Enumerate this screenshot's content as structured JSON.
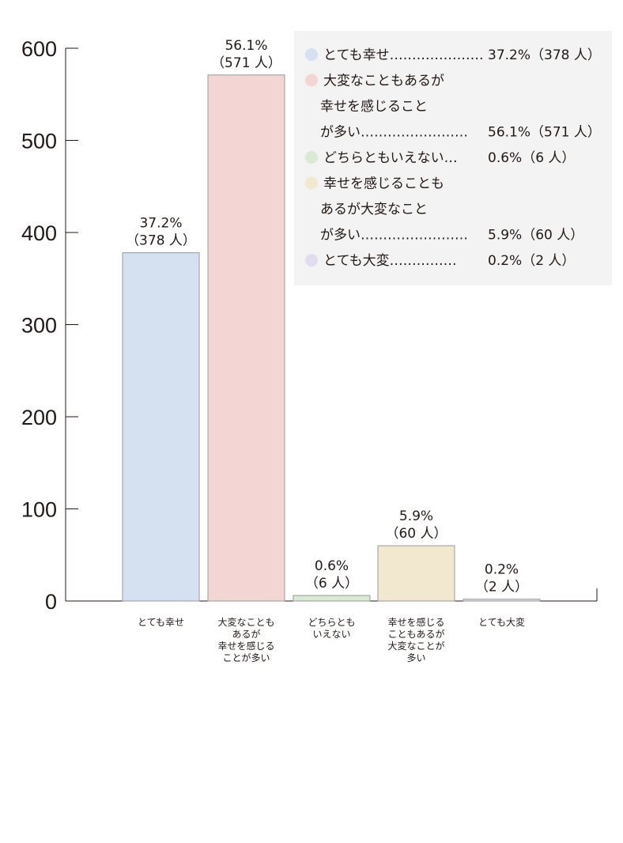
{
  "chart_data": {
    "type": "bar",
    "title": "",
    "xlabel": "",
    "ylabel": "",
    "ylim": [
      0,
      600
    ],
    "yticks": [
      0,
      100,
      200,
      300,
      400,
      500,
      600
    ],
    "grid": false,
    "legend": {
      "placement": "top-right",
      "items": [
        {
          "lines": [
            "とても幸せ…………………"
          ],
          "value": "37.2%（378 人）",
          "color": "#d5e1f0"
        },
        {
          "lines": [
            "大変なこともあるが",
            "幸せを感じること",
            "が多い……………………"
          ],
          "value": "56.1%（571 人）",
          "color": "#f3d6d4"
        },
        {
          "lines": [
            "どちらともいえない…"
          ],
          "value": "0.6%（6 人）",
          "color": "#d9ead3"
        },
        {
          "lines": [
            "幸せを感じることも",
            "あるが大変なこと",
            "が多い……………………"
          ],
          "value": "5.9%（60 人）",
          "color": "#f2e8cf"
        },
        {
          "lines": [
            "とても大変……………"
          ],
          "value": "0.2%（2 人）",
          "color": "#e3dbee"
        }
      ]
    },
    "categories": [
      {
        "lines": [
          "とても幸せ"
        ]
      },
      {
        "lines": [
          "大変なことも",
          "あるが",
          "幸せを感じる",
          "ことが多い"
        ]
      },
      {
        "lines": [
          "どちらとも",
          "いえない"
        ]
      },
      {
        "lines": [
          "幸せを感じる",
          "こともあるが",
          "大変なことが",
          "多い"
        ]
      },
      {
        "lines": [
          "とても大変"
        ]
      }
    ],
    "values": [
      378,
      571,
      6,
      60,
      2
    ],
    "data_labels": [
      [
        "37.2%",
        "（378 人）"
      ],
      [
        "56.1%",
        "（571 人）"
      ],
      [
        "0.6%",
        "（6 人）"
      ],
      [
        "5.9%",
        "（60 人）"
      ],
      [
        "0.2%",
        "（2 人）"
      ]
    ],
    "colors": [
      "#d5e1f0",
      "#f3d6d4",
      "#d9ead3",
      "#f2e8cf",
      "#e3dbee"
    ],
    "legend_bg": "#f3f3f3",
    "bar_stroke": "#9a9a9a"
  }
}
